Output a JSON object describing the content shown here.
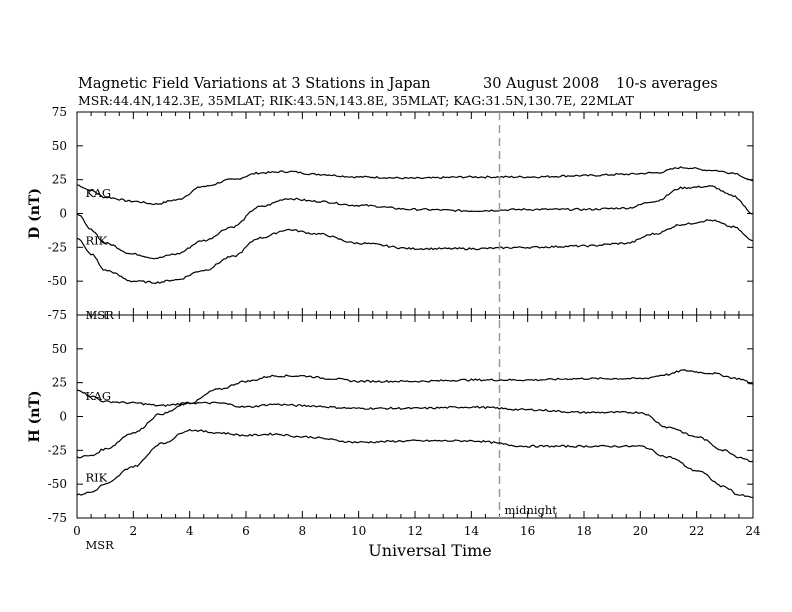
{
  "header": {
    "title": "Magnetic Field Variations at 3 Stations in Japan",
    "date": "30 August  2008",
    "averaging": "10-s averages",
    "subtitle": "MSR:44.4N,142.3E, 35MLAT;  RIK:43.5N,143.8E, 35MLAT;  KAG:31.5N,130.7E, 22MLAT"
  },
  "chart_data": [
    {
      "type": "line",
      "ylabel": "D (nT)",
      "ylim": [
        -75,
        75
      ],
      "yticks": [
        75,
        50,
        25,
        0,
        -25,
        -50,
        -75
      ],
      "xlim": [
        0,
        24
      ],
      "xticks": [
        0,
        2,
        4,
        6,
        8,
        10,
        12,
        14,
        16,
        18,
        20,
        22,
        24
      ],
      "series": [
        {
          "name": "KAG",
          "x": [
            0,
            0.5,
            1,
            2,
            2.8,
            3.5,
            4.5,
            5.5,
            6.5,
            7.5,
            8.5,
            10,
            12,
            14,
            16,
            18,
            19.5,
            20.5,
            21.5,
            22.5,
            23.3,
            24
          ],
          "y": [
            21,
            17,
            12,
            9,
            7,
            10,
            20,
            25,
            30,
            31,
            29,
            27,
            26,
            27,
            27,
            28,
            29,
            30,
            34,
            32,
            30,
            24
          ]
        },
        {
          "name": "RIK",
          "x": [
            0,
            0.5,
            1,
            2,
            2.8,
            3.5,
            4.5,
            5.5,
            6.5,
            7.5,
            8.5,
            10,
            12,
            14,
            16,
            18,
            19.5,
            20.5,
            21.5,
            22.5,
            23.3,
            24
          ],
          "y": [
            0,
            -12,
            -22,
            -30,
            -33,
            -30,
            -20,
            -10,
            5,
            11,
            9,
            6,
            3,
            2,
            3,
            3,
            4,
            9,
            19,
            20,
            13,
            0
          ]
        },
        {
          "name": "MSR",
          "x": [
            0,
            0.5,
            1,
            2,
            2.8,
            3.5,
            4.5,
            5.5,
            6.5,
            7.5,
            8.5,
            10,
            12,
            14,
            16,
            18,
            19.5,
            20.5,
            21.5,
            22.5,
            23.3,
            24
          ],
          "y": [
            -18,
            -30,
            -42,
            -50,
            -51,
            -49,
            -42,
            -32,
            -18,
            -12,
            -15,
            -22,
            -26,
            -26,
            -25,
            -24,
            -22,
            -15,
            -8,
            -5,
            -10,
            -20
          ]
        }
      ],
      "series_labels": [
        {
          "text": "KAG",
          "x": 0.3,
          "y": 15
        },
        {
          "text": "RIK",
          "x": 0.3,
          "y": -20
        },
        {
          "text": "MSR",
          "x": 0.3,
          "y": -75
        }
      ]
    },
    {
      "type": "line",
      "ylabel": "H (nT)",
      "ylim": [
        -75,
        75
      ],
      "yticks": [
        50,
        25,
        0,
        -25,
        -50,
        -75
      ],
      "xlim": [
        0,
        24
      ],
      "xticks": [
        0,
        2,
        4,
        6,
        8,
        10,
        12,
        14,
        16,
        18,
        20,
        22,
        24
      ],
      "xlabel": "Universal Time",
      "series": [
        {
          "name": "KAG",
          "x": [
            0,
            0.5,
            1,
            2,
            3,
            4,
            5,
            6,
            7,
            8,
            9,
            10,
            12,
            14,
            16,
            18,
            20,
            21,
            21.5,
            22.5,
            23.5,
            24
          ],
          "y": [
            20,
            15,
            11,
            10,
            8,
            10,
            20,
            26,
            30,
            30,
            28,
            26,
            26,
            27,
            27,
            28,
            28,
            31,
            34,
            32,
            28,
            24
          ]
        },
        {
          "name": "RIK",
          "x": [
            0,
            0.5,
            1,
            2,
            3,
            4,
            5,
            6,
            7,
            8,
            10,
            12,
            14,
            16,
            18,
            20,
            21,
            22,
            23,
            23.5,
            24
          ],
          "y": [
            -30,
            -29,
            -24,
            -12,
            2,
            10,
            10,
            7,
            9,
            8,
            6,
            6,
            7,
            5,
            3,
            3,
            -8,
            -15,
            -25,
            -30,
            -33
          ]
        },
        {
          "name": "MSR",
          "x": [
            0,
            0.5,
            1,
            2,
            3,
            4,
            5,
            6,
            7,
            8,
            10,
            12,
            14,
            16,
            18,
            20,
            21,
            22,
            23,
            23.5,
            24
          ],
          "y": [
            -58,
            -56,
            -50,
            -37,
            -20,
            -10,
            -12,
            -14,
            -13,
            -15,
            -19,
            -18,
            -18,
            -22,
            -22,
            -22,
            -30,
            -40,
            -52,
            -58,
            -60
          ]
        }
      ],
      "series_labels": [
        {
          "text": "KAG",
          "x": 0.3,
          "y": 15
        },
        {
          "text": "RIK",
          "x": 0.3,
          "y": -45
        },
        {
          "text": "MSR",
          "x": 0.3,
          "y": -95
        }
      ],
      "annotation": {
        "text": "midnight",
        "x": 15
      },
      "vline_x": 15
    }
  ]
}
